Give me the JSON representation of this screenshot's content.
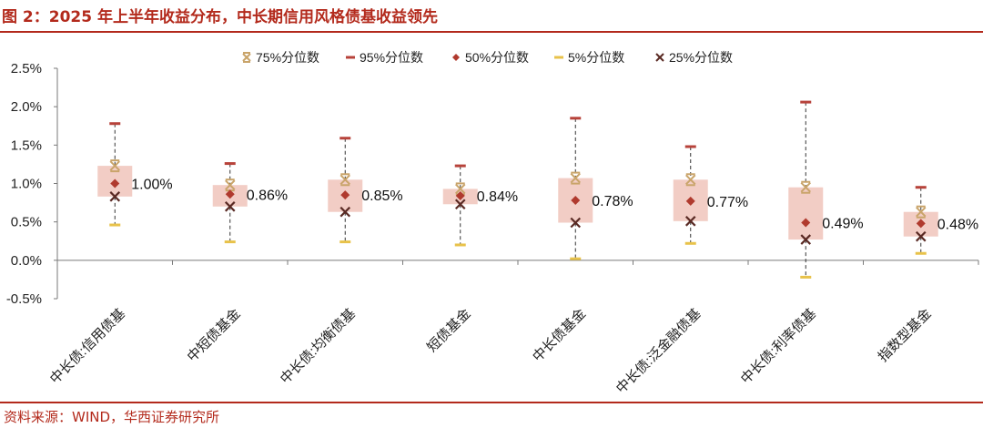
{
  "header": {
    "title": "图 2：2025 年上半年收益分布，中长期信用风格债基收益领先"
  },
  "footer": {
    "source": "资料来源：WIND，华西证券研究所"
  },
  "colors": {
    "accent": "#b32a1c",
    "box": "#f2cdc5",
    "p75": "#c9a46a",
    "p95": "#b7423a",
    "p50": "#b03a2e",
    "p5": "#e8c24a",
    "p25": "#5a2a24",
    "axis": "#7a7a7a"
  },
  "chart_data": {
    "type": "box",
    "title": "",
    "xlabel": "",
    "ylabel": "",
    "ylim": [
      -0.5,
      2.5
    ],
    "yticks": [
      "-0.5%",
      "0.0%",
      "0.5%",
      "1.0%",
      "1.5%",
      "2.0%",
      "2.5%"
    ],
    "ytick_values": [
      -0.5,
      0.0,
      0.5,
      1.0,
      1.5,
      2.0,
      2.5
    ],
    "grid": false,
    "legend": {
      "position": "top",
      "entries": [
        {
          "name": "75%分位数",
          "key": "p75",
          "marker": "x-star"
        },
        {
          "name": "95%分位数",
          "key": "p95",
          "marker": "dash"
        },
        {
          "name": "50%分位数",
          "key": "p50",
          "marker": "diamond"
        },
        {
          "name": "5%分位数",
          "key": "p5",
          "marker": "dash"
        },
        {
          "name": "25%分位数",
          "key": "p25",
          "marker": "x"
        }
      ]
    },
    "categories": [
      "中长债:信用债基",
      "中短债基金",
      "中长债:均衡债基",
      "短债基金",
      "中长债基金",
      "中长债:泛金融债基",
      "中长债:利率债基",
      "指数型基金"
    ],
    "p95": [
      1.78,
      1.26,
      1.59,
      1.23,
      1.85,
      1.48,
      2.06,
      0.95
    ],
    "p75": [
      1.23,
      0.98,
      1.05,
      0.93,
      1.07,
      1.05,
      0.95,
      0.63
    ],
    "p50": [
      1.0,
      0.86,
      0.85,
      0.84,
      0.78,
      0.77,
      0.49,
      0.48
    ],
    "p25": [
      0.83,
      0.7,
      0.63,
      0.73,
      0.49,
      0.51,
      0.27,
      0.31
    ],
    "p5": [
      0.46,
      0.24,
      0.24,
      0.2,
      0.02,
      0.22,
      -0.22,
      0.09
    ],
    "median_labels": [
      "1.00%",
      "0.86%",
      "0.85%",
      "0.84%",
      "0.78%",
      "0.77%",
      "0.49%",
      "0.48%"
    ]
  }
}
